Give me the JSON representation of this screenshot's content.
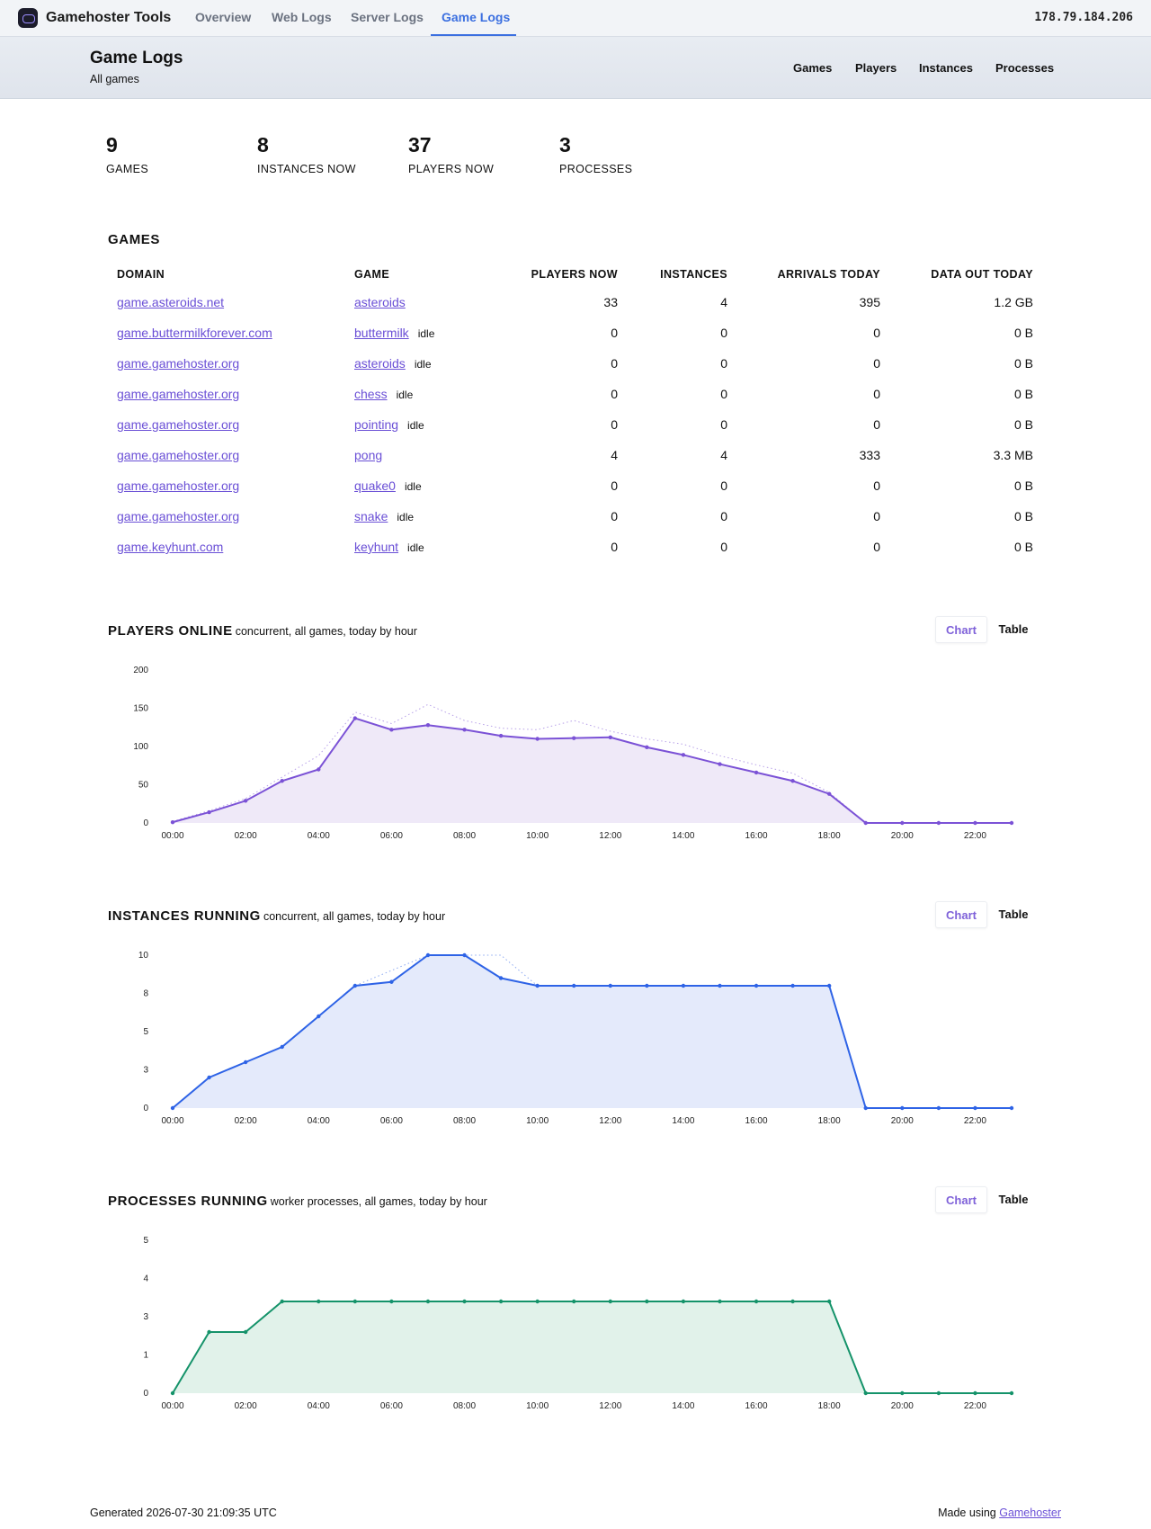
{
  "app": {
    "name": "Gamehoster Tools",
    "ip": "178.79.184.206"
  },
  "nav": {
    "tabs": [
      "Overview",
      "Web Logs",
      "Server Logs",
      "Game Logs"
    ],
    "active": "Game Logs"
  },
  "header": {
    "title": "Game Logs",
    "subtitle": "All games",
    "links": [
      "Games",
      "Players",
      "Instances",
      "Processes"
    ]
  },
  "stats": [
    {
      "value": "9",
      "label": "GAMES"
    },
    {
      "value": "8",
      "label": "INSTANCES NOW"
    },
    {
      "value": "37",
      "label": "PLAYERS NOW"
    },
    {
      "value": "3",
      "label": "PROCESSES"
    }
  ],
  "games_table": {
    "title": "GAMES",
    "columns": [
      "DOMAIN",
      "GAME",
      "PLAYERS NOW",
      "INSTANCES",
      "ARRIVALS TODAY",
      "DATA OUT TODAY"
    ],
    "rows": [
      {
        "domain": "game.asteroids.net",
        "game": "asteroids",
        "status": "",
        "players": "33",
        "instances": "4",
        "arrivals": "395",
        "data_out": "1.2 GB"
      },
      {
        "domain": "game.buttermilkforever.com",
        "game": "buttermilk",
        "status": "idle",
        "players": "0",
        "instances": "0",
        "arrivals": "0",
        "data_out": "0 B"
      },
      {
        "domain": "game.gamehoster.org",
        "game": "asteroids",
        "status": "idle",
        "players": "0",
        "instances": "0",
        "arrivals": "0",
        "data_out": "0 B"
      },
      {
        "domain": "game.gamehoster.org",
        "game": "chess",
        "status": "idle",
        "players": "0",
        "instances": "0",
        "arrivals": "0",
        "data_out": "0 B"
      },
      {
        "domain": "game.gamehoster.org",
        "game": "pointing",
        "status": "idle",
        "players": "0",
        "instances": "0",
        "arrivals": "0",
        "data_out": "0 B"
      },
      {
        "domain": "game.gamehoster.org",
        "game": "pong",
        "status": "",
        "players": "4",
        "instances": "4",
        "arrivals": "333",
        "data_out": "3.3 MB"
      },
      {
        "domain": "game.gamehoster.org",
        "game": "quake0",
        "status": "idle",
        "players": "0",
        "instances": "0",
        "arrivals": "0",
        "data_out": "0 B"
      },
      {
        "domain": "game.gamehoster.org",
        "game": "snake",
        "status": "idle",
        "players": "0",
        "instances": "0",
        "arrivals": "0",
        "data_out": "0 B"
      },
      {
        "domain": "game.keyhunt.com",
        "game": "keyhunt",
        "status": "idle",
        "players": "0",
        "instances": "0",
        "arrivals": "0",
        "data_out": "0 B"
      }
    ]
  },
  "toggle": {
    "chart_label": "Chart",
    "table_label": "Table"
  },
  "chart_data": [
    {
      "type": "area",
      "title": "PLAYERS ONLINE",
      "subtitle": "concurrent, all games, today by hour",
      "x": [
        "00:00",
        "01:00",
        "02:00",
        "03:00",
        "04:00",
        "05:00",
        "06:00",
        "07:00",
        "08:00",
        "09:00",
        "10:00",
        "11:00",
        "12:00",
        "13:00",
        "14:00",
        "15:00",
        "16:00",
        "17:00",
        "18:00",
        "19:00",
        "20:00",
        "21:00",
        "22:00",
        "23:00"
      ],
      "x_tick_labels": [
        "00:00",
        "02:00",
        "04:00",
        "06:00",
        "08:00",
        "10:00",
        "12:00",
        "14:00",
        "16:00",
        "18:00",
        "20:00",
        "22:00"
      ],
      "y_ticks": [
        "0",
        "50",
        "100",
        "150",
        "200"
      ],
      "ylim": [
        0,
        200
      ],
      "color": "#7b52d6",
      "fill": "#efe9f8",
      "series": [
        {
          "values": [
            1,
            14,
            29,
            55,
            70,
            137,
            122,
            128,
            122,
            114,
            110,
            111,
            112,
            99,
            89,
            77,
            66,
            55,
            38,
            0,
            0,
            0,
            0,
            0
          ]
        },
        {
          "style": "dotted",
          "values": [
            2,
            16,
            32,
            60,
            88,
            145,
            130,
            155,
            134,
            124,
            122,
            134,
            120,
            110,
            103,
            88,
            76,
            65,
            40,
            0,
            0,
            0,
            0,
            0
          ]
        }
      ]
    },
    {
      "type": "area",
      "title": "INSTANCES RUNNING",
      "subtitle": "concurrent, all games, today by hour",
      "x": [
        "00:00",
        "01:00",
        "02:00",
        "03:00",
        "04:00",
        "05:00",
        "06:00",
        "07:00",
        "08:00",
        "09:00",
        "10:00",
        "11:00",
        "12:00",
        "13:00",
        "14:00",
        "15:00",
        "16:00",
        "17:00",
        "18:00",
        "19:00",
        "20:00",
        "21:00",
        "22:00",
        "23:00"
      ],
      "x_tick_labels": [
        "00:00",
        "02:00",
        "04:00",
        "06:00",
        "08:00",
        "10:00",
        "12:00",
        "14:00",
        "16:00",
        "18:00",
        "20:00",
        "22:00"
      ],
      "y_ticks": [
        "0",
        "3",
        "5",
        "8",
        "10"
      ],
      "ylim": [
        0,
        10
      ],
      "color": "#2e63e6",
      "fill": "#e4eafb",
      "series": [
        {
          "values": [
            0,
            2,
            3,
            4,
            6,
            8,
            8.25,
            10,
            10,
            8.5,
            8,
            8,
            8,
            8,
            8,
            8,
            8,
            8,
            8,
            0,
            0,
            0,
            0,
            0
          ]
        },
        {
          "style": "dotted",
          "values": [
            0,
            2,
            3,
            4,
            6,
            8,
            9,
            10,
            10,
            10,
            8,
            8,
            8,
            8,
            8,
            8,
            8,
            8,
            8,
            0,
            0,
            0,
            0,
            0
          ]
        }
      ]
    },
    {
      "type": "area",
      "title": "PROCESSES RUNNING",
      "subtitle": "worker processes, all games, today by hour",
      "x": [
        "00:00",
        "01:00",
        "02:00",
        "03:00",
        "04:00",
        "05:00",
        "06:00",
        "07:00",
        "08:00",
        "09:00",
        "10:00",
        "11:00",
        "12:00",
        "13:00",
        "14:00",
        "15:00",
        "16:00",
        "17:00",
        "18:00",
        "19:00",
        "20:00",
        "21:00",
        "22:00",
        "23:00"
      ],
      "x_tick_labels": [
        "00:00",
        "02:00",
        "04:00",
        "06:00",
        "08:00",
        "10:00",
        "12:00",
        "14:00",
        "16:00",
        "18:00",
        "20:00",
        "22:00"
      ],
      "y_ticks": [
        "0",
        "1",
        "3",
        "4",
        "5"
      ],
      "ylim": [
        0,
        5
      ],
      "color": "#15936a",
      "fill": "#e1f2ea",
      "series": [
        {
          "values": [
            0,
            2,
            2,
            3,
            3,
            3,
            3,
            3,
            3,
            3,
            3,
            3,
            3,
            3,
            3,
            3,
            3,
            3,
            3,
            0,
            0,
            0,
            0,
            0
          ]
        }
      ]
    }
  ],
  "footer": {
    "generated": "Generated 2026-07-30 21:09:35 UTC",
    "made_using_prefix": "Made using",
    "made_using_link": "Gamehoster"
  }
}
